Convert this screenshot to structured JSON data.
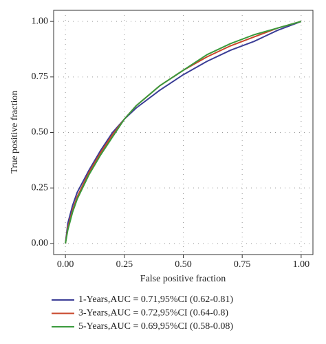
{
  "chart_data": {
    "type": "line",
    "x_label": "False positive fraction",
    "y_label": "True positive fraction",
    "x": [
      0,
      0.01,
      0.03,
      0.05,
      0.1,
      0.15,
      0.2,
      0.25,
      0.3,
      0.4,
      0.5,
      0.6,
      0.7,
      0.8,
      0.9,
      1
    ],
    "series": [
      {
        "name": "1-Years,AUC = 0.71,95%CI (0.62-0.81)",
        "color": "#3b3d96",
        "values": [
          0,
          0.09,
          0.17,
          0.23,
          0.33,
          0.42,
          0.5,
          0.56,
          0.61,
          0.69,
          0.76,
          0.82,
          0.87,
          0.91,
          0.96,
          1
        ]
      },
      {
        "name": "3-Years,AUC = 0.72,95%CI (0.64-0.8)",
        "color": "#c9462a",
        "values": [
          0,
          0.07,
          0.15,
          0.21,
          0.32,
          0.41,
          0.49,
          0.56,
          0.62,
          0.71,
          0.78,
          0.84,
          0.89,
          0.93,
          0.97,
          1
        ]
      },
      {
        "name": "5-Years,AUC = 0.69,95%CI (0.58-0.08)",
        "color": "#3a9a3c",
        "values": [
          0,
          0.06,
          0.14,
          0.2,
          0.31,
          0.4,
          0.48,
          0.56,
          0.62,
          0.71,
          0.78,
          0.85,
          0.9,
          0.94,
          0.97,
          1
        ]
      }
    ],
    "xlim": [
      -0.05,
      1.05
    ],
    "ylim": [
      -0.05,
      1.05
    ],
    "xticks": [
      {
        "value": 0,
        "label": "0.00"
      },
      {
        "value": 0.25,
        "label": "0.25"
      },
      {
        "value": 0.5,
        "label": "0.50"
      },
      {
        "value": 0.75,
        "label": "0.75"
      },
      {
        "value": 1,
        "label": "1.00"
      }
    ],
    "yticks": [
      {
        "value": 0,
        "label": "0.00"
      },
      {
        "value": 0.25,
        "label": "0.25"
      },
      {
        "value": 0.5,
        "label": "0.50"
      },
      {
        "value": 0.75,
        "label": "0.75"
      },
      {
        "value": 1,
        "label": "1.00"
      }
    ],
    "grid": true
  }
}
